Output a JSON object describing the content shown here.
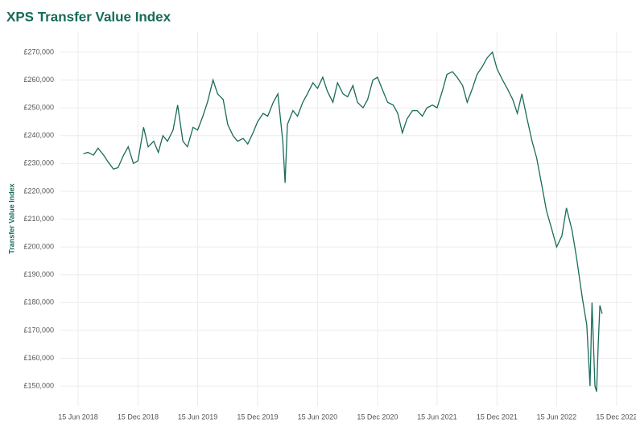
{
  "chart_data": {
    "type": "line",
    "title": "XPS Transfer Value Index",
    "y_label": "Transfer Value Index",
    "color": "#1a6b5a",
    "grid": true,
    "xlim": [
      "2018-04-22",
      "2023-01-31"
    ],
    "xticks": [
      {
        "value": "2018-06-15",
        "label": "15 Jun 2018"
      },
      {
        "value": "2018-12-15",
        "label": "15 Dec 2018"
      },
      {
        "value": "2019-06-15",
        "label": "15 Jun 2019"
      },
      {
        "value": "2019-12-15",
        "label": "15 Dec 2019"
      },
      {
        "value": "2020-06-15",
        "label": "15 Jun 2020"
      },
      {
        "value": "2020-12-15",
        "label": "15 Dec 2020"
      },
      {
        "value": "2021-06-15",
        "label": "15 Jun 2021"
      },
      {
        "value": "2021-12-15",
        "label": "15 Dec 2021"
      },
      {
        "value": "2022-06-15",
        "label": "15 Jun 2022"
      },
      {
        "value": "2022-12-15",
        "label": "15 Dec 2022"
      }
    ],
    "ylim": [
      142800,
      277200
    ],
    "yticks": [
      {
        "value": 150000,
        "label": "£150,000"
      },
      {
        "value": 160000,
        "label": "£160,000"
      },
      {
        "value": 170000,
        "label": "£170,000"
      },
      {
        "value": 180000,
        "label": "£180,000"
      },
      {
        "value": 190000,
        "label": "£190,000"
      },
      {
        "value": 200000,
        "label": "£200,000"
      },
      {
        "value": 210000,
        "label": "£210,000"
      },
      {
        "value": 220000,
        "label": "£220,000"
      },
      {
        "value": 230000,
        "label": "£230,000"
      },
      {
        "value": 240000,
        "label": "£240,000"
      },
      {
        "value": 250000,
        "label": "£250,000"
      },
      {
        "value": 260000,
        "label": "£260,000"
      },
      {
        "value": 270000,
        "label": "£270,000"
      }
    ],
    "x": [
      "2018-07-01",
      "2018-07-15",
      "2018-08-01",
      "2018-08-15",
      "2018-09-01",
      "2018-09-15",
      "2018-10-01",
      "2018-10-15",
      "2018-11-01",
      "2018-11-15",
      "2018-12-01",
      "2018-12-15",
      "2019-01-01",
      "2019-01-15",
      "2019-02-01",
      "2019-02-15",
      "2019-03-01",
      "2019-03-15",
      "2019-04-01",
      "2019-04-15",
      "2019-05-01",
      "2019-05-15",
      "2019-06-01",
      "2019-06-15",
      "2019-07-01",
      "2019-07-15",
      "2019-08-01",
      "2019-08-15",
      "2019-09-01",
      "2019-09-15",
      "2019-10-01",
      "2019-10-15",
      "2019-11-01",
      "2019-11-15",
      "2019-12-01",
      "2019-12-15",
      "2020-01-01",
      "2020-01-15",
      "2020-02-01",
      "2020-02-15",
      "2020-03-01",
      "2020-03-08",
      "2020-03-15",
      "2020-04-01",
      "2020-04-15",
      "2020-05-01",
      "2020-05-15",
      "2020-06-01",
      "2020-06-15",
      "2020-07-01",
      "2020-07-15",
      "2020-08-01",
      "2020-08-15",
      "2020-09-01",
      "2020-09-15",
      "2020-10-01",
      "2020-10-15",
      "2020-11-01",
      "2020-11-15",
      "2020-12-01",
      "2020-12-15",
      "2021-01-01",
      "2021-01-15",
      "2021-02-01",
      "2021-02-15",
      "2021-03-01",
      "2021-03-15",
      "2021-04-01",
      "2021-04-15",
      "2021-05-01",
      "2021-05-15",
      "2021-06-01",
      "2021-06-15",
      "2021-07-01",
      "2021-07-15",
      "2021-08-01",
      "2021-08-15",
      "2021-09-01",
      "2021-09-15",
      "2021-10-01",
      "2021-10-15",
      "2021-11-01",
      "2021-11-15",
      "2021-12-01",
      "2021-12-15",
      "2022-01-01",
      "2022-01-15",
      "2022-02-01",
      "2022-02-15",
      "2022-03-01",
      "2022-03-15",
      "2022-04-01",
      "2022-04-15",
      "2022-05-01",
      "2022-05-15",
      "2022-06-01",
      "2022-06-15",
      "2022-07-01",
      "2022-07-15",
      "2022-08-01",
      "2022-08-15",
      "2022-09-01",
      "2022-09-15",
      "2022-09-25",
      "2022-10-01",
      "2022-10-10",
      "2022-10-15",
      "2022-10-20",
      "2022-10-25",
      "2022-11-01"
    ],
    "values": [
      233500,
      234000,
      233000,
      235500,
      233000,
      230500,
      228000,
      228500,
      233000,
      236000,
      230000,
      231000,
      243000,
      236000,
      238000,
      234000,
      240000,
      238000,
      242000,
      251000,
      238000,
      236000,
      243000,
      242000,
      247000,
      252000,
      260000,
      255000,
      253000,
      244000,
      240000,
      238000,
      239000,
      237000,
      241000,
      245000,
      248000,
      247000,
      252000,
      255000,
      238000,
      223000,
      244000,
      249000,
      247000,
      252000,
      255000,
      259000,
      257000,
      261000,
      256000,
      252000,
      259000,
      255000,
      254000,
      258000,
      252000,
      250000,
      253000,
      260000,
      261000,
      256000,
      252000,
      251000,
      248000,
      241000,
      246000,
      249000,
      249000,
      247000,
      250000,
      251000,
      250000,
      256000,
      262000,
      263000,
      261000,
      258000,
      252000,
      257000,
      262000,
      265000,
      268000,
      270000,
      264000,
      260000,
      257000,
      253000,
      248000,
      255000,
      247000,
      238000,
      232000,
      222000,
      213000,
      206000,
      200000,
      204000,
      214000,
      206000,
      196000,
      182000,
      172000,
      150000,
      180000,
      150000,
      148000,
      165000,
      179000,
      176000
    ]
  }
}
